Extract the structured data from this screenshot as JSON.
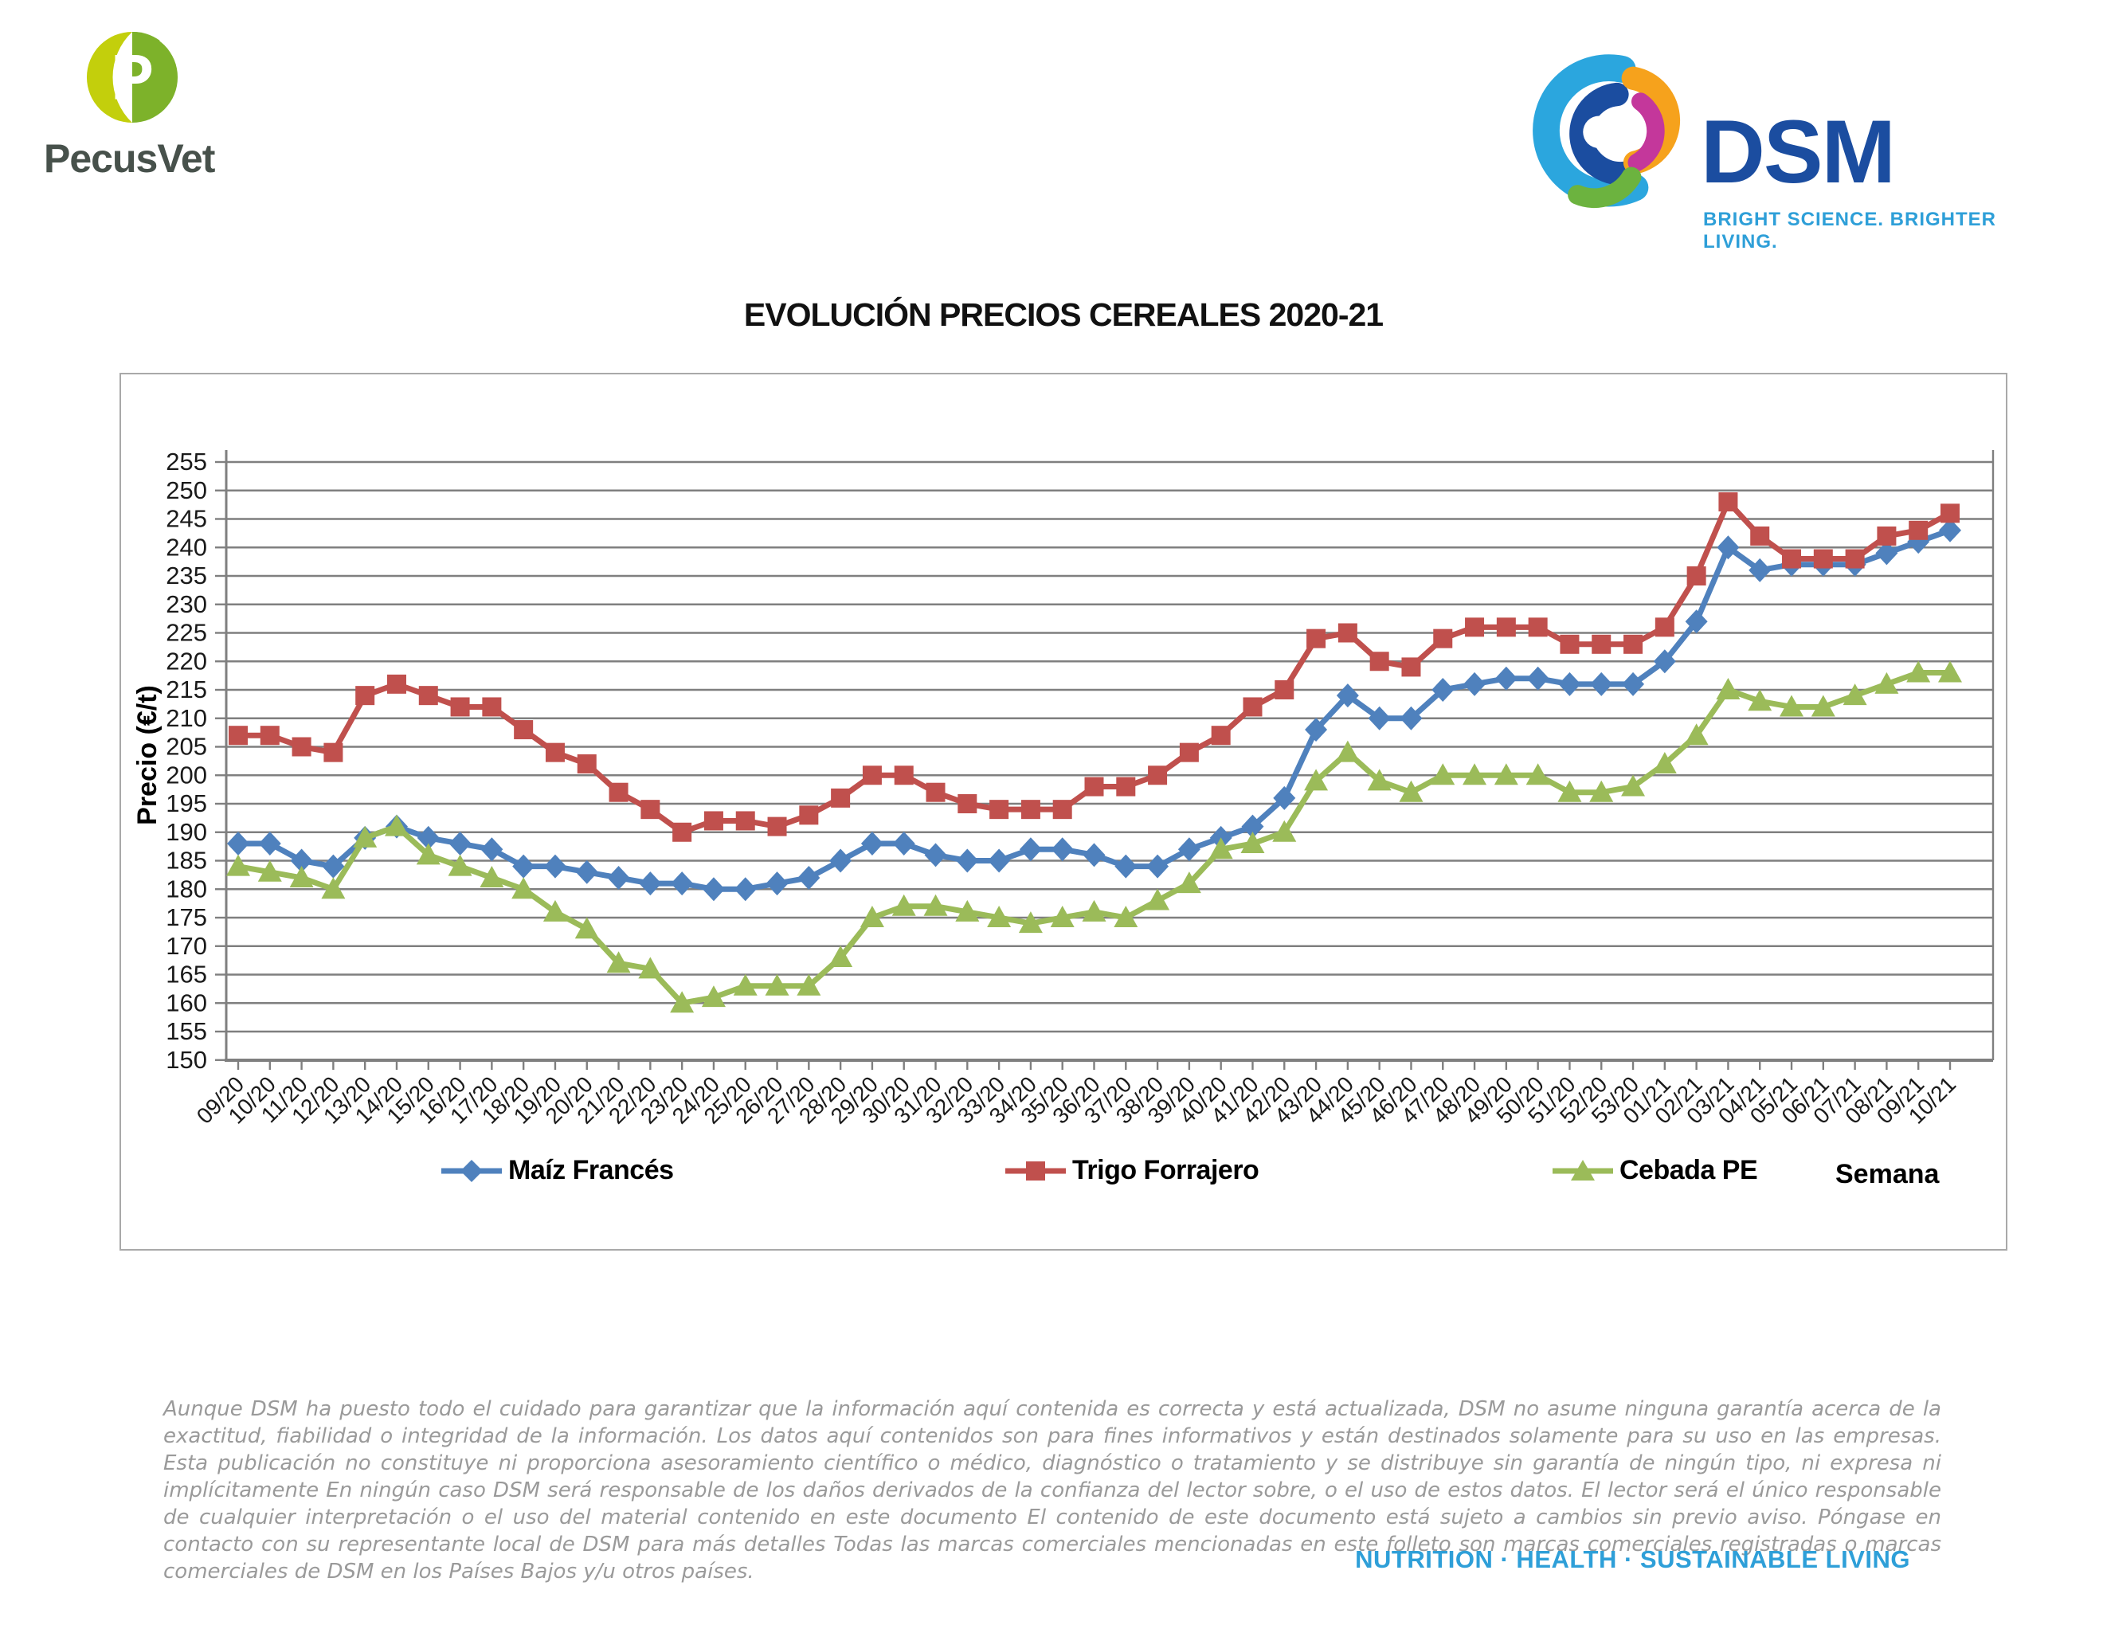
{
  "header": {
    "pecusvet": {
      "logo_letter": "P",
      "name": "PecusVet",
      "colors": {
        "left": "#c3cf0c",
        "right": "#7db22a",
        "text": "#47514b"
      }
    },
    "dsm": {
      "name": "DSM",
      "tagline": "BRIGHT SCIENCE. BRIGHTER LIVING.",
      "colors": {
        "name": "#1b4da0",
        "tagline": "#2e9fd8"
      }
    }
  },
  "title": "EVOLUCIÓN PRECIOS CEREALES 2020-21",
  "chart_data": {
    "type": "line",
    "title": "EVOLUCIÓN PRECIOS CEREALES 2020-21",
    "xlabel": "Semana",
    "ylabel": "Precio (€/t)",
    "ylim": [
      150,
      255
    ],
    "ytick_step": 5,
    "grid": true,
    "legend_position": "bottom",
    "categories": [
      "09/20",
      "10/20",
      "11/20",
      "12/20",
      "13/20",
      "14/20",
      "15/20",
      "16/20",
      "17/20",
      "18/20",
      "19/20",
      "20/20",
      "21/20",
      "22/20",
      "23/20",
      "24/20",
      "25/20",
      "26/20",
      "27/20",
      "28/20",
      "29/20",
      "30/20",
      "31/20",
      "32/20",
      "33/20",
      "34/20",
      "35/20",
      "36/20",
      "37/20",
      "38/20",
      "39/20",
      "40/20",
      "41/20",
      "42/20",
      "43/20",
      "44/20",
      "45/20",
      "46/20",
      "47/20",
      "48/20",
      "49/20",
      "50/20",
      "51/20",
      "52/20",
      "53/20",
      "01/21",
      "02/21",
      "03/21",
      "04/21",
      "05/21",
      "06/21",
      "07/21",
      "08/21",
      "09/21",
      "10/21"
    ],
    "series": [
      {
        "name": "Maíz Francés",
        "color": "#4f81bd",
        "marker": "diamond",
        "values": [
          188,
          188,
          185,
          184,
          189,
          191,
          189,
          188,
          187,
          184,
          184,
          183,
          182,
          181,
          181,
          180,
          180,
          181,
          182,
          185,
          188,
          188,
          186,
          185,
          185,
          187,
          187,
          186,
          184,
          184,
          187,
          189,
          191,
          196,
          208,
          214,
          210,
          210,
          215,
          216,
          217,
          217,
          216,
          216,
          216,
          220,
          227,
          240,
          236,
          237,
          237,
          237,
          239,
          241,
          243
        ]
      },
      {
        "name": "Trigo Forrajero",
        "color": "#c0504d",
        "marker": "square",
        "values": [
          207,
          207,
          205,
          204,
          214,
          216,
          214,
          212,
          212,
          208,
          204,
          202,
          197,
          194,
          190,
          192,
          192,
          191,
          193,
          196,
          200,
          200,
          197,
          195,
          194,
          194,
          194,
          198,
          198,
          200,
          204,
          207,
          212,
          215,
          224,
          225,
          220,
          219,
          224,
          226,
          226,
          226,
          223,
          223,
          223,
          226,
          235,
          248,
          242,
          238,
          238,
          238,
          242,
          243,
          246
        ]
      },
      {
        "name": "Cebada PE",
        "color": "#9bbb59",
        "marker": "triangle",
        "values": [
          184,
          183,
          182,
          180,
          189,
          191,
          186,
          184,
          182,
          180,
          176,
          173,
          167,
          166,
          160,
          161,
          163,
          163,
          163,
          168,
          175,
          177,
          177,
          176,
          175,
          174,
          175,
          176,
          175,
          178,
          181,
          187,
          188,
          190,
          199,
          204,
          199,
          197,
          200,
          200,
          200,
          200,
          197,
          197,
          198,
          202,
          207,
          215,
          213,
          212,
          212,
          214,
          216,
          218,
          218
        ]
      }
    ]
  },
  "footer": {
    "disclaimer": "Aunque DSM ha puesto todo el cuidado para garantizar que la información aquí contenida es correcta y está actualizada, DSM no asume ninguna garantía acerca de la exactitud, fiabilidad o integridad de la información. Los datos aquí contenidos son para fines informativos y están destinados solamente para su uso en las empresas. Esta publicación no constituye ni proporciona asesoramiento científico o médico, diagnóstico o tratamiento y se distribuye sin garantía de ningún tipo, ni expresa ni implícitamente En ningún caso DSM será responsable de los daños derivados de la confianza del lector sobre, o el uso de estos datos. El lector será el único responsable de cualquier interpretación o el uso del material contenido en este documento El contenido de este documento está sujeto a cambios sin previo aviso. Póngase en contacto con su representante local de DSM para más detalles Todas las marcas comerciales mencionadas en este folleto son marcas comerciales registradas o marcas comerciales de DSM en los Países Bajos y/u otros países.",
    "slogan": "NUTRITION · HEALTH · SUSTAINABLE LIVING"
  }
}
